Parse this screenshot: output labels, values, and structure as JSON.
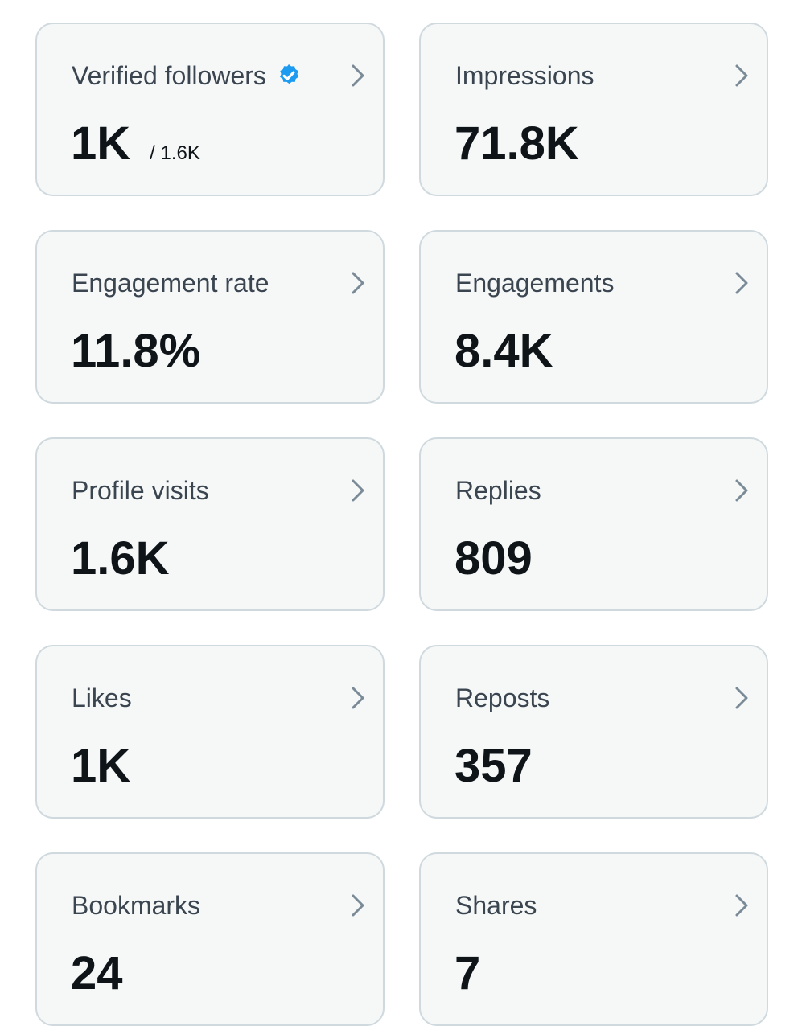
{
  "metrics": [
    {
      "label": "Verified followers",
      "value": "1K",
      "subvalue": "/ 1.6K",
      "verified_icon": "verified-badge-icon",
      "badge_color": "#1d9bf0"
    },
    {
      "label": "Impressions",
      "value": "71.8K"
    },
    {
      "label": "Engagement rate",
      "value": "11.8%"
    },
    {
      "label": "Engagements",
      "value": "8.4K"
    },
    {
      "label": "Profile visits",
      "value": "1.6K"
    },
    {
      "label": "Replies",
      "value": "809"
    },
    {
      "label": "Likes",
      "value": "1K"
    },
    {
      "label": "Reposts",
      "value": "357"
    },
    {
      "label": "Bookmarks",
      "value": "24"
    },
    {
      "label": "Shares",
      "value": "7"
    }
  ],
  "colors": {
    "card_background": "#f6f8f8",
    "card_border": "#cfd9de",
    "label_text": "#3a4550",
    "value_text": "#0f1419",
    "chevron": "#7a8a96",
    "verified_badge": "#1d9bf0"
  },
  "icons": {
    "chevron": "chevron-right-icon",
    "verified": "verified-badge-icon"
  }
}
